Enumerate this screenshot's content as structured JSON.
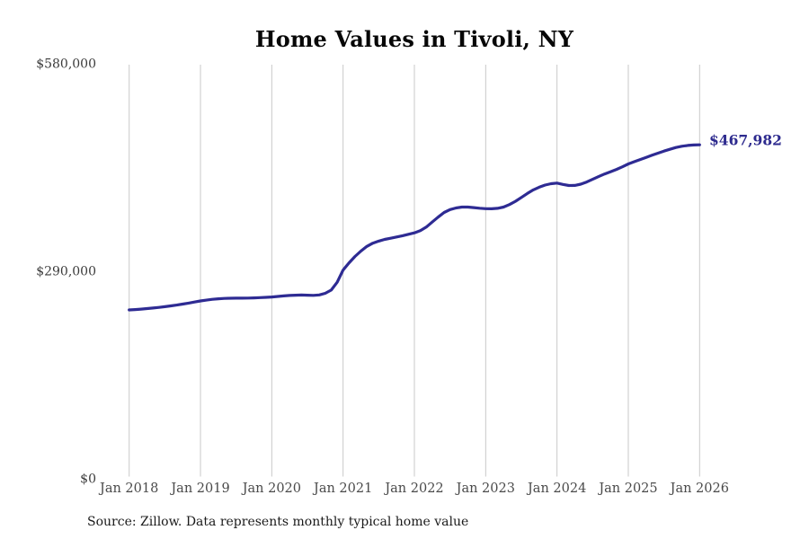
{
  "chart_data": {
    "type": "line",
    "title": "Home Values in Tivoli, NY",
    "source": "Source: Zillow. Data represents monthly typical home value",
    "series_name": "Monthly typical home value",
    "end_label": "$467,982",
    "latest_value": 467982,
    "line_color": "#2e2b93",
    "grid_color": "#c9c9c9",
    "ylim": [
      0,
      580000
    ],
    "grid": "vertical-only",
    "x_start": "Jan 2018",
    "x_end": "Jan 2026",
    "x_interval": "monthly",
    "x_tick_labels": [
      "Jan 2018",
      "Jan 2019",
      "Jan 2020",
      "Jan 2021",
      "Jan 2022",
      "Jan 2023",
      "Jan 2024",
      "Jan 2025",
      "Jan 2026"
    ],
    "y_ticks": [
      {
        "value": 0,
        "label": "$0"
      },
      {
        "value": 290000,
        "label": "$290,000"
      },
      {
        "value": 580000,
        "label": "$580,000"
      }
    ],
    "values": [
      237300,
      237800,
      238400,
      239100,
      239900,
      240800,
      241800,
      242900,
      244100,
      245400,
      246800,
      248300,
      249800,
      251000,
      252100,
      252800,
      253300,
      253600,
      253700,
      253700,
      253800,
      254100,
      254500,
      254900,
      255400,
      256100,
      256900,
      257500,
      257900,
      258100,
      257900,
      257600,
      258300,
      260500,
      265000,
      276000,
      293000,
      303000,
      312000,
      319500,
      326000,
      330500,
      333500,
      335800,
      337500,
      339200,
      341000,
      343000,
      345000,
      348000,
      353000,
      360000,
      367000,
      373500,
      377500,
      379800,
      381000,
      381000,
      380300,
      379400,
      378800,
      378600,
      379300,
      381000,
      384500,
      389000,
      394500,
      400000,
      405000,
      408800,
      411800,
      413700,
      414500,
      412600,
      411200,
      411300,
      413000,
      416000,
      419800,
      423600,
      427200,
      430400,
      433600,
      437300,
      441300,
      444400,
      447400,
      450400,
      453400,
      456400,
      459200,
      461800,
      464200,
      466000,
      467200,
      467800,
      467982
    ]
  }
}
